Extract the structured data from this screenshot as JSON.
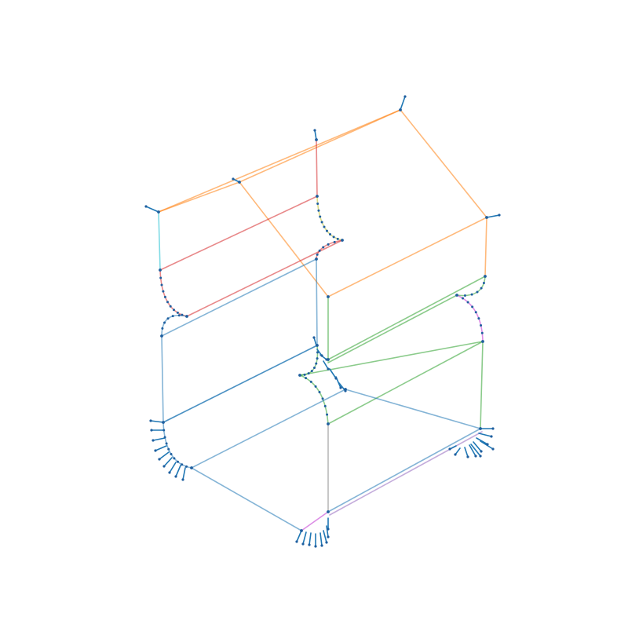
{
  "diagram": {
    "type": "3d-wireframe-edges-with-normals",
    "colors": {
      "blue": "#1f77b4",
      "orange": "#ff7f0e",
      "green": "#2ca02c",
      "red": "#d62728",
      "purple": "#9467bd",
      "olive": "#bcbd22",
      "cyan": "#17becf",
      "magenta": "#c030d0",
      "gray": "#7f7f7f",
      "vertex": "#1f5f9f",
      "normal": "#1f77b4"
    },
    "edge_groups": [
      "top-face",
      "upper-rounded-shelf",
      "middle-rounded-step",
      "lower-body",
      "bottom-rounded-base"
    ],
    "edge_count": 54,
    "normal_tuft_count": 8
  }
}
